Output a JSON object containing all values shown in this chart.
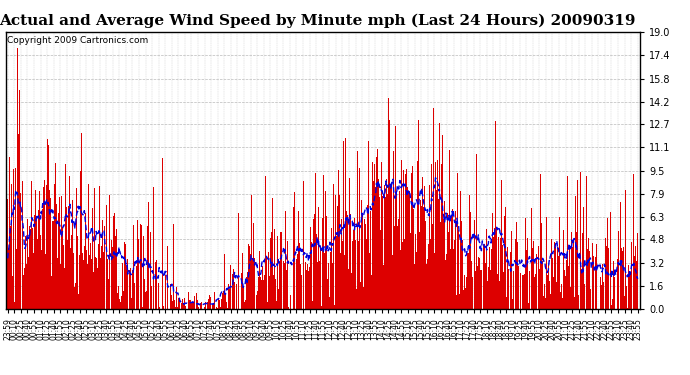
{
  "title": "Actual and Average Wind Speed by Minute mph (Last 24 Hours) 20090319",
  "copyright": "Copyright 2009 Cartronics.com",
  "ymin": 0.0,
  "ymax": 19.0,
  "yticks": [
    0.0,
    1.6,
    3.2,
    4.8,
    6.3,
    7.9,
    9.5,
    11.1,
    12.7,
    14.2,
    15.8,
    17.4,
    19.0
  ],
  "bar_color": "#dd0000",
  "line_color": "#0000dd",
  "bg_color": "#ffffff",
  "grid_color": "#aaaaaa",
  "title_fontsize": 11,
  "copyright_fontsize": 6.5,
  "xtick_labels": [
    "23:59",
    "00:10",
    "00:25",
    "00:40",
    "00:55",
    "01:10",
    "01:25",
    "01:40",
    "01:55",
    "02:10",
    "02:25",
    "02:40",
    "02:55",
    "03:10",
    "03:25",
    "03:40",
    "03:55",
    "04:10",
    "04:25",
    "04:40",
    "04:55",
    "05:10",
    "05:25",
    "05:40",
    "05:55",
    "06:10",
    "06:25",
    "06:40",
    "06:55",
    "07:10",
    "07:25",
    "07:40",
    "07:55",
    "08:10",
    "08:25",
    "08:40",
    "08:55",
    "09:10",
    "09:25",
    "09:40",
    "09:55",
    "10:10",
    "10:25",
    "10:40",
    "10:55",
    "11:10",
    "11:25",
    "11:40",
    "11:55",
    "12:10",
    "12:25",
    "12:40",
    "12:55",
    "13:10",
    "13:25",
    "13:40",
    "13:55",
    "14:10",
    "14:25",
    "14:40",
    "14:55",
    "15:10",
    "15:25",
    "15:40",
    "15:55",
    "16:10",
    "16:25",
    "16:40",
    "16:55",
    "17:10",
    "17:25",
    "17:40",
    "17:55",
    "18:10",
    "18:25",
    "18:40",
    "18:55",
    "19:10",
    "19:25",
    "19:40",
    "19:55",
    "20:10",
    "20:25",
    "20:40",
    "20:55",
    "21:10",
    "21:25",
    "21:40",
    "21:55",
    "22:10",
    "22:25",
    "22:40",
    "22:55",
    "23:10",
    "23:25",
    "23:40",
    "23:55"
  ]
}
